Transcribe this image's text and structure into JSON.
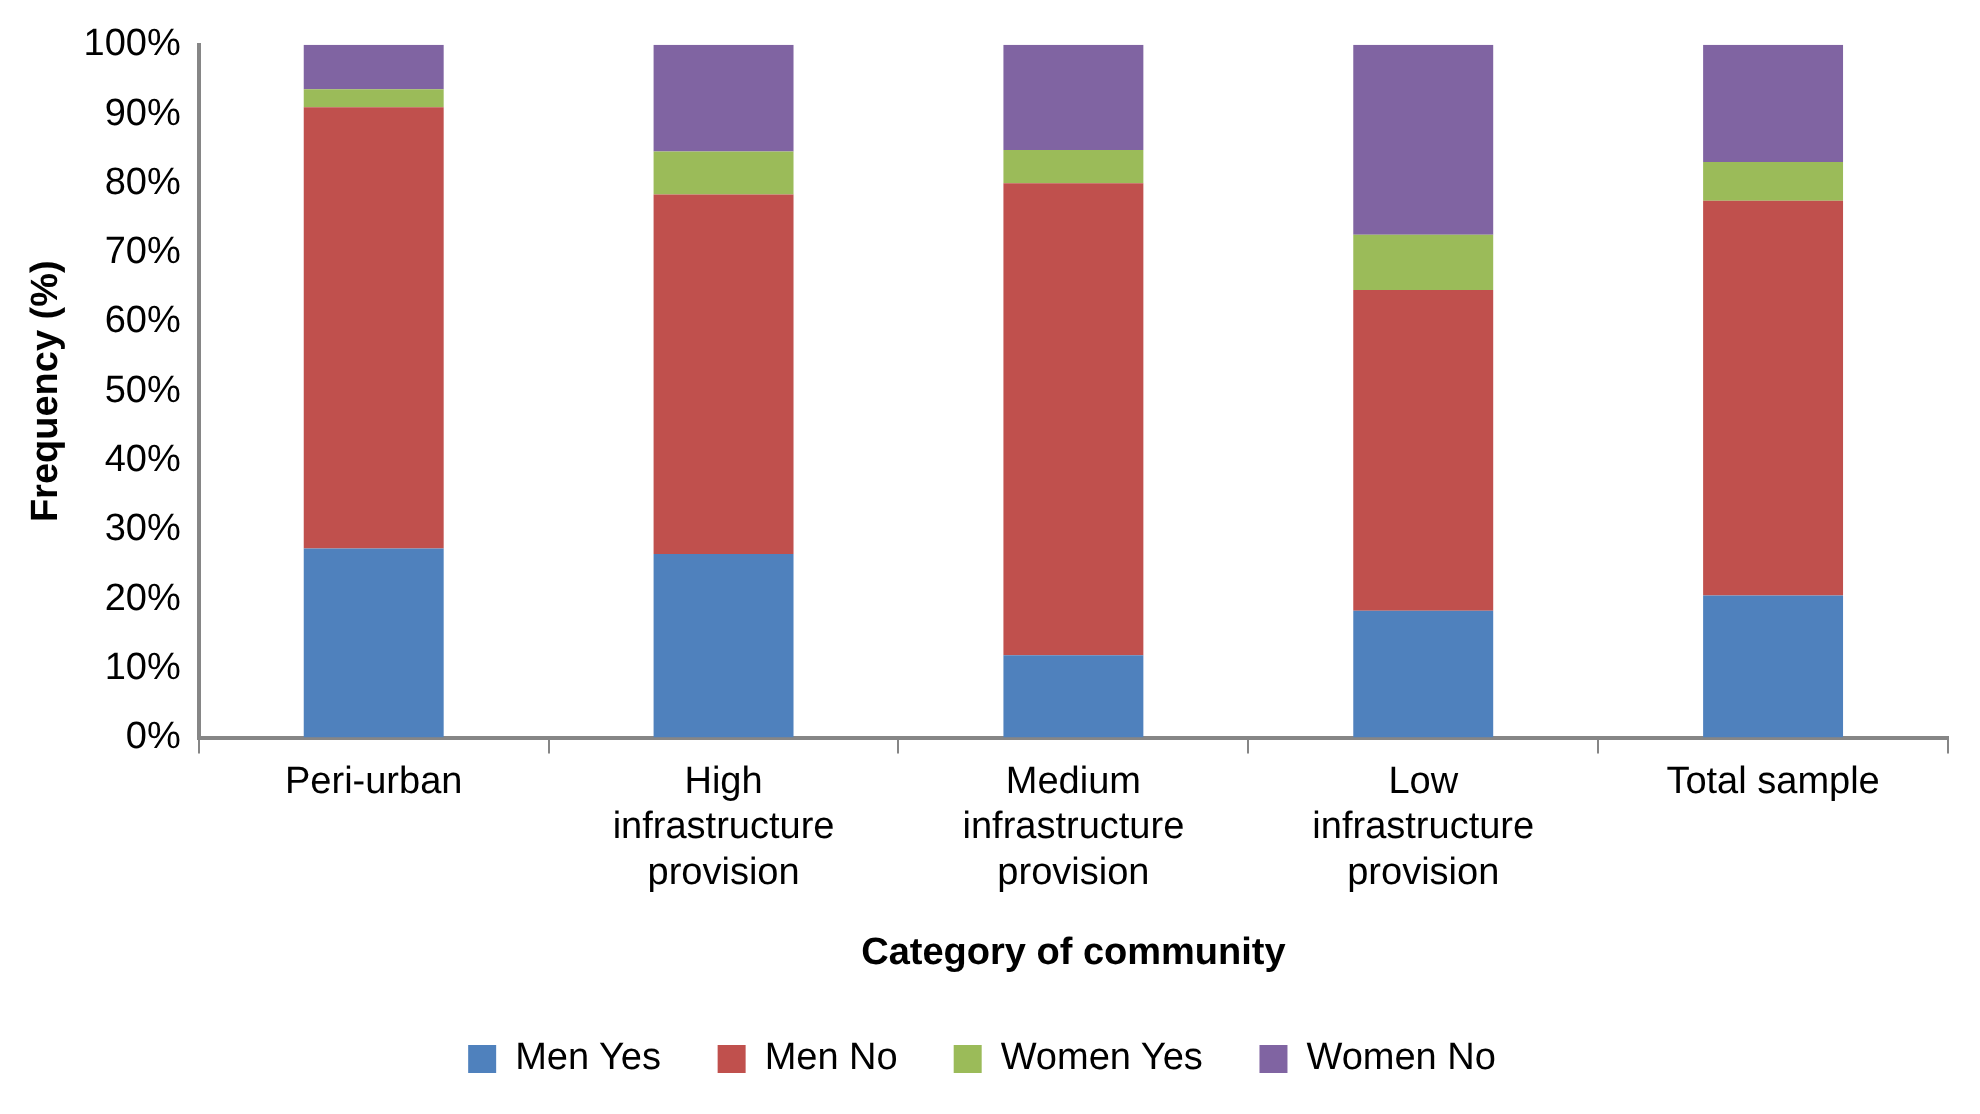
{
  "chart_data": {
    "type": "bar",
    "stacked": true,
    "xlabel": "Category of community",
    "ylabel": "Frequency (%)",
    "categories": [
      "Peri-urban",
      "High infrastructure provision",
      "Medium infrastructure provision",
      "Low infrastructure provision",
      "Total sample"
    ],
    "series": [
      {
        "name": "Men Yes",
        "color": "#4f81bd",
        "values": [
          27.3,
          26.5,
          11.9,
          18.3,
          20.5
        ]
      },
      {
        "name": "Men No",
        "color": "#c0504d",
        "values": [
          63.7,
          51.9,
          68.1,
          46.3,
          57.0
        ]
      },
      {
        "name": "Women Yes",
        "color": "#9bbb59",
        "values": [
          2.6,
          6.2,
          4.8,
          8.0,
          5.6
        ]
      },
      {
        "name": "Women No",
        "color": "#8064a2",
        "values": [
          6.4,
          15.4,
          15.2,
          27.4,
          16.9
        ]
      }
    ],
    "ylim": [
      0,
      100
    ],
    "yticks": [
      {
        "value": 0,
        "label": "0%"
      },
      {
        "value": 10,
        "label": "10%"
      },
      {
        "value": 20,
        "label": "20%"
      },
      {
        "value": 30,
        "label": "30%"
      },
      {
        "value": 40,
        "label": "40%"
      },
      {
        "value": 50,
        "label": "50%"
      },
      {
        "value": 60,
        "label": "60%"
      },
      {
        "value": 70,
        "label": "70%"
      },
      {
        "value": 80,
        "label": "80%"
      },
      {
        "value": 90,
        "label": "90%"
      },
      {
        "value": 100,
        "label": "100%"
      }
    ],
    "grid": false,
    "legend": "bottom"
  }
}
